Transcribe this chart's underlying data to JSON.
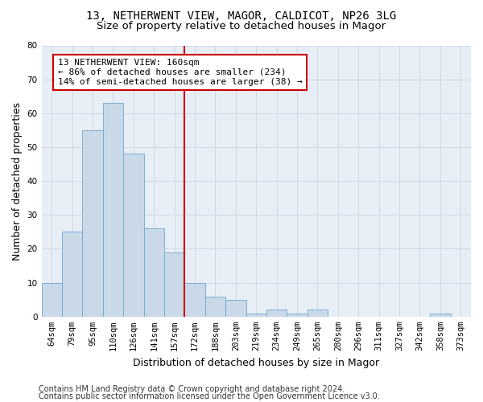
{
  "title1": "13, NETHERWENT VIEW, MAGOR, CALDICOT, NP26 3LG",
  "title2": "Size of property relative to detached houses in Magor",
  "xlabel": "Distribution of detached houses by size in Magor",
  "ylabel": "Number of detached properties",
  "bar_labels": [
    "64sqm",
    "79sqm",
    "95sqm",
    "110sqm",
    "126sqm",
    "141sqm",
    "157sqm",
    "172sqm",
    "188sqm",
    "203sqm",
    "219sqm",
    "234sqm",
    "249sqm",
    "265sqm",
    "280sqm",
    "296sqm",
    "311sqm",
    "327sqm",
    "342sqm",
    "358sqm",
    "373sqm"
  ],
  "bar_values": [
    10,
    25,
    55,
    63,
    48,
    26,
    19,
    10,
    6,
    5,
    1,
    2,
    1,
    2,
    0,
    0,
    0,
    0,
    0,
    1,
    0
  ],
  "bar_color": "#c9d9e8",
  "bar_edgecolor": "#6fa8cc",
  "vline_x_index": 7,
  "vline_color": "#cc0000",
  "annotation_text": "13 NETHERWENT VIEW: 160sqm\n← 86% of detached houses are smaller (234)\n14% of semi-detached houses are larger (38) →",
  "annotation_box_edgecolor": "#cc0000",
  "annotation_box_facecolor": "white",
  "ylim": [
    0,
    80
  ],
  "yticks": [
    0,
    10,
    20,
    30,
    40,
    50,
    60,
    70,
    80
  ],
  "grid_color": "#d0d8e8",
  "background_color": "#e8eef5",
  "footer1": "Contains HM Land Registry data © Crown copyright and database right 2024.",
  "footer2": "Contains public sector information licensed under the Open Government Licence v3.0.",
  "title_fontsize": 10,
  "subtitle_fontsize": 9.5,
  "axis_label_fontsize": 9,
  "tick_fontsize": 7.5,
  "annotation_fontsize": 8,
  "footer_fontsize": 7
}
